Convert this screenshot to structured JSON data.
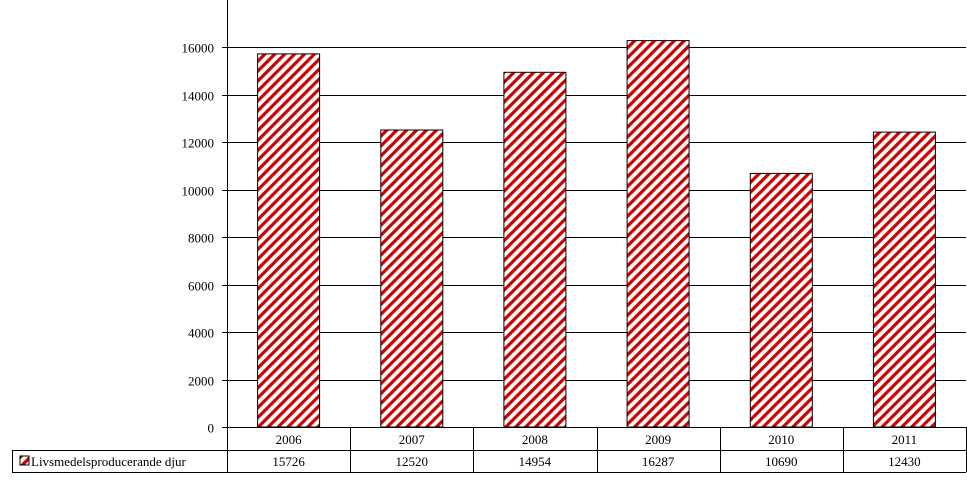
{
  "chart_data": {
    "type": "bar",
    "categories": [
      "2006",
      "2007",
      "2008",
      "2009",
      "2010",
      "2011"
    ],
    "series": [
      {
        "name": "Livsmedelsproducerande djur",
        "values": [
          15726,
          12520,
          14954,
          16287,
          10690,
          12430
        ],
        "color": "#cc0000",
        "pattern": "diagonal-hatch"
      }
    ],
    "y_ticks": [
      "0",
      "2000",
      "4000",
      "6000",
      "8000",
      "10000",
      "12000",
      "14000",
      "16000"
    ],
    "ylim": [
      0,
      18000
    ],
    "grid": true,
    "legend_placement": "data-table-left",
    "data_table": true
  }
}
